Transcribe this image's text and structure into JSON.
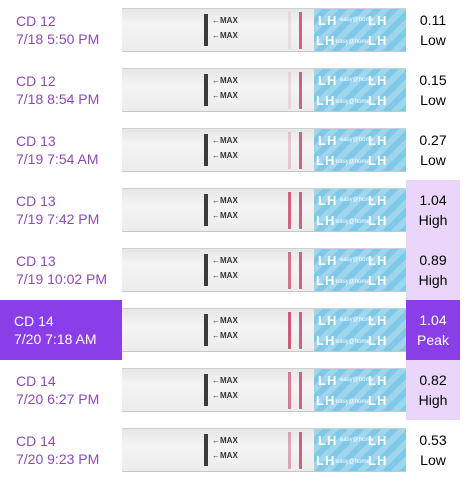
{
  "entries": [
    {
      "day": "CD 12",
      "datetime": "7/18 5:50 PM",
      "value": "0.11",
      "level": "Low"
    },
    {
      "day": "CD 12",
      "datetime": "7/18 8:54 PM",
      "value": "0.15",
      "level": "Low"
    },
    {
      "day": "CD 13",
      "datetime": "7/19 7:54 AM",
      "value": "0.27",
      "level": "Low"
    },
    {
      "day": "CD 13",
      "datetime": "7/19 7:42 PM",
      "value": "1.04",
      "level": "High"
    },
    {
      "day": "CD 13",
      "datetime": "7/19 10:02 PM",
      "value": "0.89",
      "level": "High"
    },
    {
      "day": "CD 14",
      "datetime": "7/20 7:18 AM",
      "value": "1.04",
      "level": "Peak"
    },
    {
      "day": "CD 14",
      "datetime": "7/20 6:27 PM",
      "value": "0.82",
      "level": "High"
    },
    {
      "day": "CD 14",
      "datetime": "7/20 9:23 PM",
      "value": "0.53",
      "level": "Low"
    }
  ],
  "strip": {
    "max_mark": "←MAX",
    "brand_text": "LH",
    "brand_logo": "easy@home"
  },
  "colors": {
    "label": "#8c4bb4",
    "peak": "#8a3ee8",
    "high": "#ead6fb",
    "test_line": "#c64a6e",
    "strip_brand": "#7fc8e8"
  }
}
